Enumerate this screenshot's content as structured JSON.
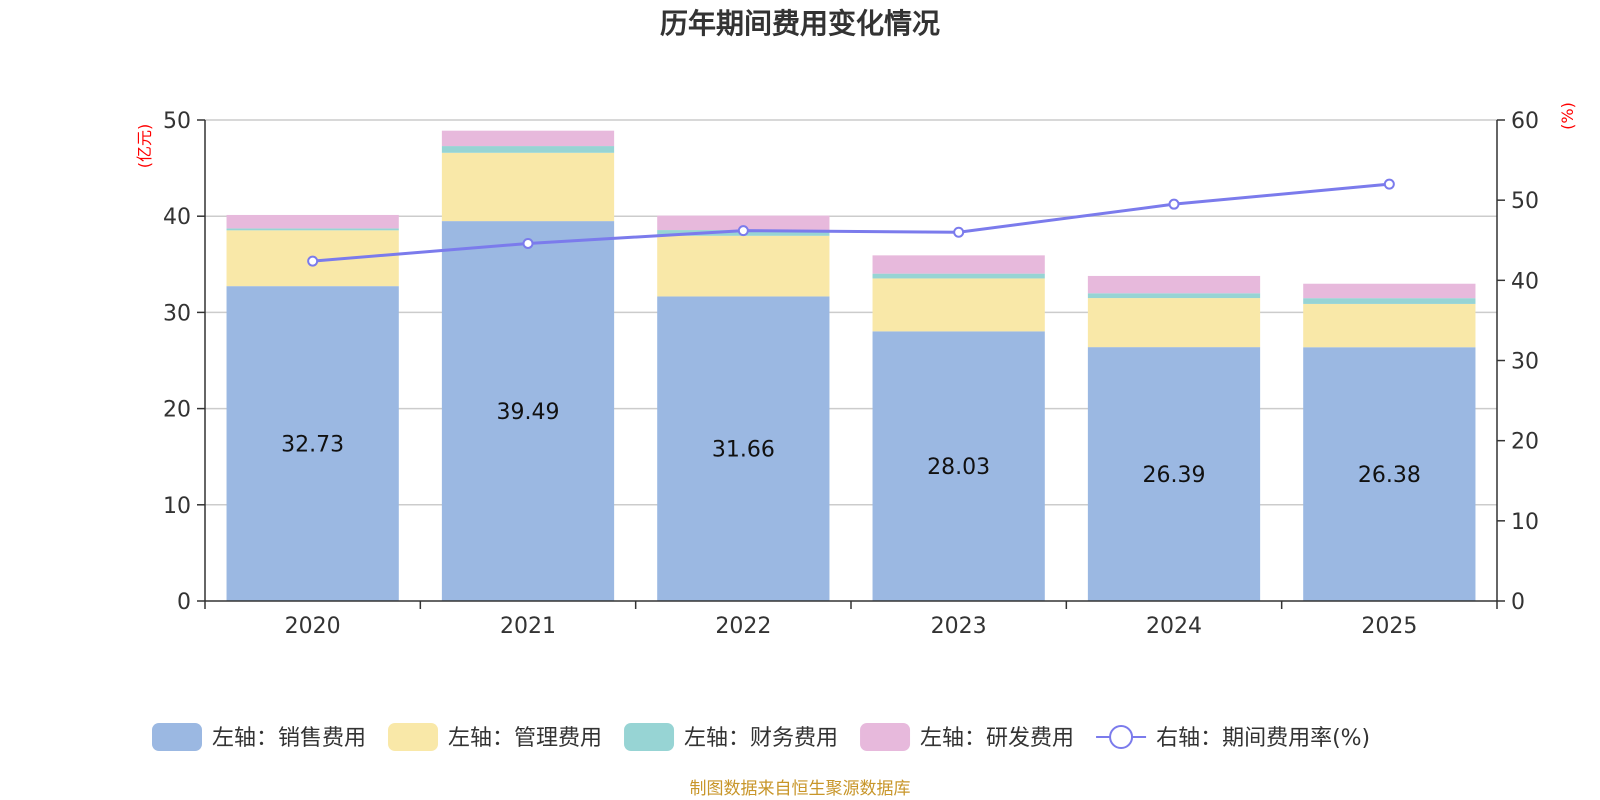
{
  "title": "历年期间费用变化情况",
  "source": "制图数据来自恒生聚源数据库",
  "chart_data": {
    "type": "bar",
    "stacked": true,
    "categories": [
      "2020",
      "2021",
      "2022",
      "2023",
      "2024",
      "2025"
    ],
    "left_axis": {
      "unit": "(亿元)",
      "range": [
        0,
        50
      ],
      "ticks": [
        "0",
        "10",
        "20",
        "30",
        "40",
        "50"
      ]
    },
    "right_axis": {
      "unit": "(%)",
      "range": [
        0,
        60
      ],
      "ticks": [
        "0",
        "10",
        "20",
        "30",
        "40",
        "50",
        "60"
      ]
    },
    "series": [
      {
        "name": "左轴：销售费用",
        "axis": "left",
        "color": "#9bb8e2",
        "values": [
          32.73,
          39.49,
          31.66,
          28.03,
          26.39,
          26.38
        ],
        "labels": [
          "32.73",
          "39.49",
          "31.66",
          "28.03",
          "26.39",
          "26.38"
        ]
      },
      {
        "name": "左轴：管理费用",
        "axis": "left",
        "color": "#f9e8a8",
        "values": [
          5.8,
          7.1,
          6.3,
          5.5,
          5.1,
          4.5
        ]
      },
      {
        "name": "左轴：财务费用",
        "axis": "left",
        "color": "#97d4d4",
        "values": [
          0.2,
          0.7,
          0.6,
          0.5,
          0.5,
          0.6
        ]
      },
      {
        "name": "左轴：研发费用",
        "axis": "left",
        "color": "#e7b9dc",
        "values": [
          1.4,
          1.6,
          1.5,
          1.9,
          1.8,
          1.5
        ]
      },
      {
        "name": "右轴：期间费用率(%)",
        "axis": "right",
        "type": "line",
        "color": "#7b7bec",
        "values": [
          42.4,
          44.6,
          46.2,
          46.0,
          49.5,
          52.0
        ]
      }
    ],
    "legend_position": "bottom",
    "grid": true
  }
}
